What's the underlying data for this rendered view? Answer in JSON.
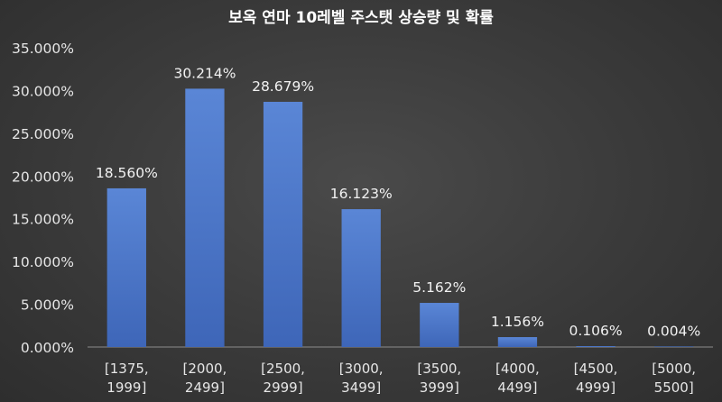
{
  "chart_data": {
    "type": "bar",
    "title": "보옥 연마 10레벨 주스탯 상승량 및 확률",
    "categories": [
      [
        "[1375,",
        "1999]"
      ],
      [
        "[2000,",
        "2499]"
      ],
      [
        "[2500,",
        "2999]"
      ],
      [
        "[3000,",
        "3499]"
      ],
      [
        "[3500,",
        "3999]"
      ],
      [
        "[4000,",
        "4499]"
      ],
      [
        "[4500,",
        "4999]"
      ],
      [
        "[5000,",
        "5500]"
      ]
    ],
    "values": [
      18.56,
      30.214,
      28.679,
      16.123,
      5.162,
      1.156,
      0.106,
      0.004
    ],
    "data_labels": [
      "18.560%",
      "30.214%",
      "28.679%",
      "16.123%",
      "5.162%",
      "1.156%",
      "0.106%",
      "0.004%"
    ],
    "ylim": [
      0,
      35
    ],
    "yticks": [
      0,
      5,
      10,
      15,
      20,
      25,
      30,
      35
    ],
    "ytick_labels": [
      "0.000%",
      "5.000%",
      "10.000%",
      "15.000%",
      "20.000%",
      "25.000%",
      "30.000%",
      "35.000%"
    ],
    "xlabel": "",
    "ylabel": "",
    "grid": false,
    "legend": "none",
    "bar_color": "#4472c4"
  }
}
